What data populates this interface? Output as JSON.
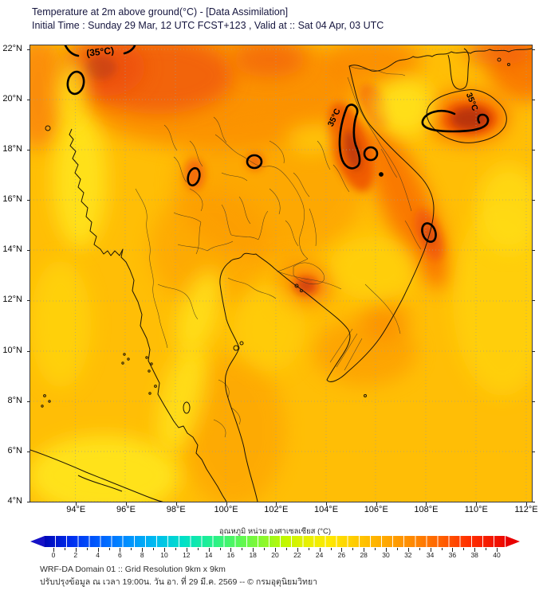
{
  "header": {
    "line1": "Temperature at 2m above ground(°C) - [Data Assimilation]",
    "line2": "Initial Time : Sunday 29 Mar, 12 UTC FCST+123 , Valid at :: Sat 04 Apr, 03 UTC"
  },
  "map": {
    "y_tick_labels": [
      "22°N",
      "20°N",
      "18°N",
      "16°N",
      "14°N",
      "12°N",
      "10°N",
      "8°N",
      "6°N",
      "4°N"
    ],
    "x_tick_labels": [
      "94°E",
      "96°E",
      "98°E",
      "100°E",
      "102°E",
      "104°E",
      "106°E",
      "108°E",
      "110°E",
      "112°E"
    ],
    "contour_labels": {
      "top": "(35°C)",
      "north_vietnam": "35°C",
      "hainan": "35°C"
    }
  },
  "colorbar": {
    "title": "อุณหภูมิ หน่วย องศาเซลเซียส (°C)",
    "tick_values": [
      0,
      2,
      4,
      6,
      8,
      10,
      12,
      14,
      16,
      18,
      20,
      22,
      24,
      26,
      28,
      30,
      32,
      34,
      36,
      38,
      40
    ],
    "range_min": 0,
    "range_max": 40,
    "cold_end_color": "#1612c6",
    "hot_end_color": "#e80000"
  },
  "footer": {
    "line1": "WRF-DA Domain 01 :: Grid Resolution 9km x 9km",
    "line2": "ปรับปรุงข้อมูล ณ เวลา 19:00น. วัน อา. ที่ 29 มี.ค. 2569 -- © กรมอุตุนิยมวิทยา"
  },
  "chart_data": {
    "type": "heatmap",
    "title": "Temperature at 2m above ground (°C) - Data Assimilation",
    "x_axis": {
      "label": "Longitude",
      "ticks": [
        "94°E",
        "96°E",
        "98°E",
        "100°E",
        "102°E",
        "104°E",
        "106°E",
        "108°E",
        "110°E",
        "112°E"
      ]
    },
    "y_axis": {
      "label": "Latitude",
      "ticks": [
        "22°N",
        "20°N",
        "18°N",
        "16°N",
        "14°N",
        "12°N",
        "10°N",
        "8°N",
        "6°N",
        "4°N"
      ]
    },
    "colorbar": {
      "min": 0,
      "max": 40,
      "step": 2,
      "unit": "°C",
      "style": "jet, arrows both ends"
    },
    "contour_level_shown": 35,
    "field_summary": [
      {
        "region": "most land and sea (Thailand, Gulf, Andaman)",
        "approx_temp_c": 31
      },
      {
        "region": "northern Thailand / Myanmar highlands band",
        "approx_temp_c": 34
      },
      {
        "region": "northwest corner hot spot ~21-22N 95-97E",
        "approx_temp_c": 35
      },
      {
        "region": "north-central Vietnam coast ~17-19N 105-106E",
        "approx_temp_c": 35
      },
      {
        "region": "Hainan island interior ~19-20N 109-110E",
        "approx_temp_c": 36
      },
      {
        "region": "central Vietnam coast spot ~14.5N 107.8E",
        "approx_temp_c": 35
      },
      {
        "region": "yellow cool patches (Myanmar coast, SE sea, Gulf of Tonkin, south-west corner)",
        "approx_temp_c": 28
      }
    ]
  }
}
